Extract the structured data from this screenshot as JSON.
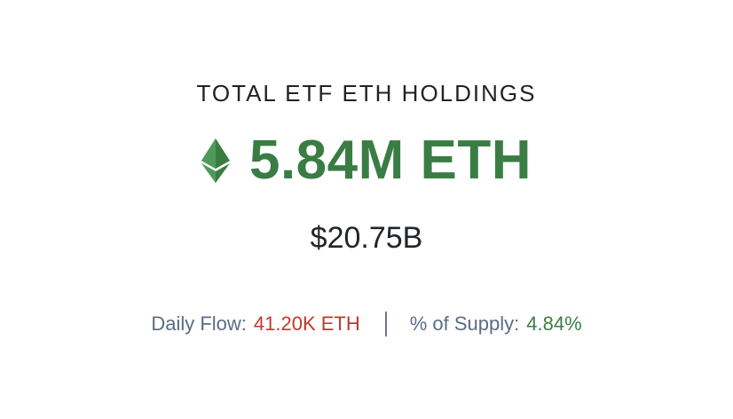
{
  "title": "TOTAL ETF ETH HOLDINGS",
  "holdings": {
    "icon": "ethereum-icon",
    "value": "5.84M ETH",
    "color": "#3a7d44"
  },
  "usd_value": "$20.75B",
  "stats": {
    "daily_flow_label": "Daily Flow:",
    "daily_flow_value": "41.20K ETH",
    "daily_flow_color": "#c0392b",
    "supply_label": "% of Supply:",
    "supply_value": "4.84%",
    "supply_color": "#3a7d44"
  }
}
